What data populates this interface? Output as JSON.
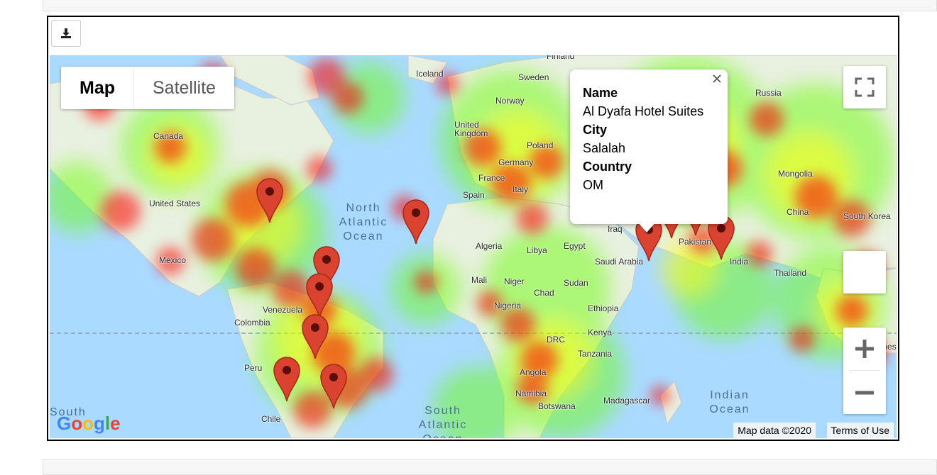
{
  "page": {
    "download_icon": "download-icon"
  },
  "map": {
    "map_type_buttons": [
      "Map",
      "Satellite"
    ],
    "fullscreen_icon": "fullscreen-icon",
    "zoom_in_icon": "zoom-in-icon",
    "zoom_out_icon": "zoom-out-icon",
    "attribution": "Map data ©2020",
    "terms": "Terms of Use",
    "logo_text": "Google",
    "land_labels": [
      "Iceland",
      "Sweden",
      "Finland",
      "Norway",
      "Russia",
      "United Kingdom",
      "Poland",
      "Germany",
      "France",
      "Italy",
      "Spain",
      "Canada",
      "United States",
      "Mexico",
      "Mongolia",
      "China",
      "South Korea",
      "Iraq",
      "Pakistan",
      "Saudi Arabia",
      "India",
      "Thailand",
      "Algeria",
      "Libya",
      "Egypt",
      "Mali",
      "Niger",
      "Chad",
      "Sudan",
      "Nigeria",
      "Ethiopia",
      "Kenya",
      "DRC",
      "Tanzania",
      "Angola",
      "Namibia",
      "Botswana",
      "Madagascar",
      "Venezuela",
      "Colombia",
      "Peru",
      "Chile",
      "Indonesia"
    ],
    "ocean_labels": [
      "North Atlantic Ocean",
      "South Atlantic Ocean",
      "Indian Ocean",
      "South"
    ],
    "marker_color": "#d9432f",
    "heat_colors": [
      "#ff0000",
      "#ffff00",
      "#66ff00"
    ],
    "marker_count": 12
  },
  "popup": {
    "fields": [
      {
        "label": "Name",
        "value": "Al Dyafa Hotel Suites"
      },
      {
        "label": "City",
        "value": "Salalah"
      },
      {
        "label": "Country",
        "value": "OM"
      }
    ],
    "close_icon": "close-icon"
  }
}
